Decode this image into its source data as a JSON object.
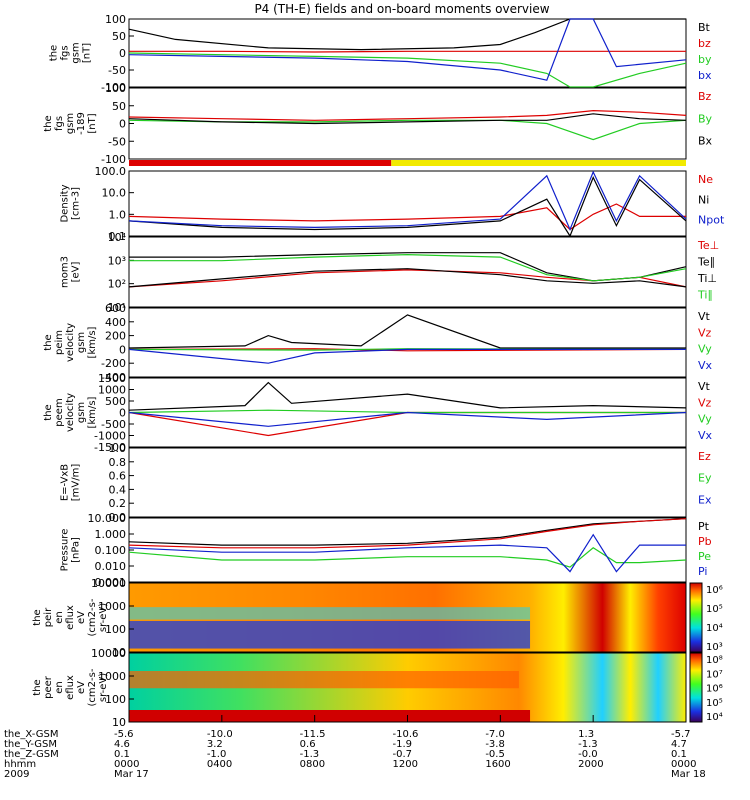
{
  "title": "P4 (TH-E) fields and on-board moments overview",
  "colors": {
    "black": "#000000",
    "red": "#dd0000",
    "green": "#22cc22",
    "blue": "#1020cc",
    "yellow": "#f2ea00"
  },
  "panels": [
    {
      "id": "fgs",
      "ylabel": [
        "the",
        "fgs",
        "gsm",
        "[nT]"
      ],
      "ticks": [
        "100",
        "50",
        "0",
        "-50",
        "-100"
      ],
      "legend": [
        {
          "t": "Bt",
          "c": "black"
        },
        {
          "t": "bz",
          "c": "red"
        },
        {
          "t": "by",
          "c": "green"
        },
        {
          "t": "bx",
          "c": "blue"
        }
      ]
    },
    {
      "id": "fgs_gsm",
      "ylabel": [
        "the",
        "fgs",
        "gsm",
        "-189",
        "[nT]"
      ],
      "ticks": [
        "100",
        "50",
        "0",
        "-50",
        "-100"
      ],
      "legend": [
        {
          "t": "Bz",
          "c": "red"
        },
        {
          "t": "By",
          "c": "green"
        },
        {
          "t": "Bx",
          "c": "black"
        }
      ]
    },
    {
      "id": "density",
      "ylabel": [
        "Density",
        "[cm-3]"
      ],
      "ticks": [
        "100.0",
        "10.0",
        "1.0",
        "0.1"
      ],
      "legend": [
        {
          "t": "Ne",
          "c": "red"
        },
        {
          "t": "Ni",
          "c": "black"
        },
        {
          "t": "Npot",
          "c": "blue"
        }
      ]
    },
    {
      "id": "temp",
      "ylabel": [
        "mom3",
        "[eV]"
      ],
      "ticks": [
        "10⁴",
        "10³",
        "10²",
        "10¹"
      ],
      "legend": [
        {
          "t": "Te⊥",
          "c": "red"
        },
        {
          "t": "Te∥",
          "c": "black"
        },
        {
          "t": "Ti⊥",
          "c": "black"
        },
        {
          "t": "Ti∥",
          "c": "green"
        }
      ]
    },
    {
      "id": "peim_vel",
      "ylabel": [
        "the",
        "peim",
        "velocity",
        "gsm",
        "[km/s]"
      ],
      "ticks": [
        "600",
        "400",
        "200",
        "0",
        "-200",
        "-400"
      ],
      "legend": [
        {
          "t": "Vt",
          "c": "black"
        },
        {
          "t": "Vz",
          "c": "red"
        },
        {
          "t": "Vy",
          "c": "green"
        },
        {
          "t": "Vx",
          "c": "blue"
        }
      ]
    },
    {
      "id": "peem_vel",
      "ylabel": [
        "the",
        "peem",
        "velocity",
        "gsm",
        "[km/s]"
      ],
      "ticks": [
        "1500",
        "1000",
        "500",
        "0",
        "-500",
        "-1000",
        "-1500"
      ],
      "legend": [
        {
          "t": "Vt",
          "c": "black"
        },
        {
          "t": "Vz",
          "c": "red"
        },
        {
          "t": "Vy",
          "c": "green"
        },
        {
          "t": "Vx",
          "c": "blue"
        }
      ]
    },
    {
      "id": "efield",
      "ylabel": [
        "E=-VxB",
        "[mV/m]"
      ],
      "ticks": [
        "1.0",
        "0.8",
        "0.6",
        "0.4",
        "0.2",
        "0.0"
      ],
      "legend": [
        {
          "t": "Ez",
          "c": "red"
        },
        {
          "t": "Ey",
          "c": "green"
        },
        {
          "t": "Ex",
          "c": "blue"
        }
      ]
    },
    {
      "id": "pressure",
      "ylabel": [
        "Pressure",
        "[nPa]"
      ],
      "ticks": [
        "10.000",
        "1.000",
        "0.100",
        "0.010",
        "0.001"
      ],
      "legend": [
        {
          "t": "Pt",
          "c": "black"
        },
        {
          "t": "Pb",
          "c": "red"
        },
        {
          "t": "Pe",
          "c": "green"
        },
        {
          "t": "Pi",
          "c": "blue"
        }
      ]
    },
    {
      "id": "peir_flux",
      "ylabel": [
        "the",
        "peir",
        "en",
        "eflux",
        "eV",
        "(cm2-s-",
        "sr-eV)"
      ],
      "ticks": [
        "10000",
        "1000",
        "100",
        "10"
      ],
      "colorbar": [
        "10⁶",
        "10⁵",
        "10⁴",
        "10³"
      ]
    },
    {
      "id": "peer_flux",
      "ylabel": [
        "the",
        "peer",
        "en",
        "eflux",
        "eV",
        "(cm2-s-",
        "sr-eV)"
      ],
      "ticks": [
        "10000",
        "1000",
        "100",
        "10"
      ],
      "colorbar": [
        "10⁸",
        "10⁷",
        "10⁶",
        "10⁵",
        "10⁴"
      ]
    }
  ],
  "time_axis": {
    "rows": [
      {
        "label": "the_X-GSM",
        "values": [
          "-5.6",
          "-10.0",
          "-11.5",
          "-10.6",
          "-7.0",
          "1.3",
          "-5.7"
        ]
      },
      {
        "label": "the_Y-GSM",
        "values": [
          "4.6",
          "3.2",
          "0.6",
          "-1.9",
          "-3.8",
          "-1.3",
          "4.7"
        ]
      },
      {
        "label": "the_Z-GSM",
        "values": [
          "0.1",
          "-1.0",
          "-1.3",
          "-0.7",
          "-0.5",
          "-0.0",
          "0.1"
        ]
      },
      {
        "label": "hhmm",
        "values": [
          "0000",
          "0400",
          "0800",
          "1200",
          "1600",
          "2000",
          "0000"
        ]
      },
      {
        "label": "2009",
        "values": [
          "Mar 17",
          "",
          "",
          "",
          "",
          "",
          "Mar 18"
        ]
      }
    ],
    "x_values_hours": [
      0,
      4,
      8,
      12,
      16,
      20,
      24
    ]
  },
  "mode_bar": [
    {
      "from_hour": 0,
      "to_hour": 11.3,
      "color": "red"
    },
    {
      "from_hour": 11.3,
      "to_hour": 24,
      "color": "yellow"
    }
  ],
  "chart_data": [
    {
      "type": "line",
      "title": "P4 (TH-E) fields and on-board moments overview",
      "ylabel": "the fgs gsm [nT]",
      "ylim": [
        -100,
        100
      ],
      "x_unit": "hours UT 2009-03-17",
      "series": [
        {
          "name": "Bt",
          "x": [
            0,
            2,
            6,
            10,
            14,
            16,
            17.5,
            19,
            20.5,
            22,
            24
          ],
          "values": [
            70,
            40,
            15,
            10,
            15,
            25,
            60,
            100,
            100,
            100,
            100
          ]
        },
        {
          "name": "bz",
          "x": [
            0,
            4,
            8,
            12,
            16,
            20,
            24
          ],
          "values": [
            5,
            5,
            3,
            5,
            5,
            5,
            5
          ]
        },
        {
          "name": "by",
          "x": [
            0,
            4,
            8,
            12,
            16,
            18,
            19,
            20,
            22,
            24
          ],
          "values": [
            0,
            -5,
            -10,
            -15,
            -30,
            -60,
            -100,
            -100,
            -60,
            -30
          ]
        },
        {
          "name": "bx",
          "x": [
            0,
            4,
            8,
            12,
            16,
            18,
            19,
            20,
            21,
            24
          ],
          "values": [
            -5,
            -10,
            -15,
            -25,
            -50,
            -80,
            100,
            100,
            -40,
            -20
          ]
        }
      ]
    },
    {
      "type": "line",
      "ylabel": "the fgs gsm -189 [nT]",
      "ylim": [
        -120,
        100
      ],
      "series": [
        {
          "name": "Bz",
          "x": [
            0,
            4,
            8,
            12,
            16,
            18,
            20,
            22,
            24
          ],
          "values": [
            10,
            5,
            0,
            5,
            10,
            15,
            30,
            25,
            15
          ]
        },
        {
          "name": "By",
          "x": [
            0,
            4,
            8,
            12,
            16,
            18,
            20,
            22,
            24
          ],
          "values": [
            0,
            -5,
            -5,
            0,
            0,
            -10,
            -60,
            -10,
            0
          ]
        },
        {
          "name": "Bx",
          "x": [
            0,
            4,
            8,
            12,
            16,
            18,
            20,
            22,
            24
          ],
          "values": [
            5,
            -5,
            -10,
            -5,
            0,
            0,
            20,
            5,
            0
          ]
        }
      ]
    },
    {
      "type": "line",
      "ylabel": "Density [cm-3]",
      "ylim": [
        0.1,
        100
      ],
      "yscale": "log",
      "series": [
        {
          "name": "Ne",
          "x": [
            0,
            4,
            8,
            12,
            16,
            18,
            19,
            20,
            21,
            22,
            24
          ],
          "values": [
            0.8,
            0.6,
            0.5,
            0.6,
            0.8,
            2,
            0.2,
            1,
            3,
            0.8,
            0.8
          ]
        },
        {
          "name": "Ni",
          "x": [
            0,
            4,
            8,
            12,
            16,
            18,
            19,
            20,
            21,
            22,
            24
          ],
          "values": [
            0.5,
            0.25,
            0.2,
            0.25,
            0.5,
            5,
            0.1,
            50,
            0.3,
            40,
            0.5
          ]
        },
        {
          "name": "Npot",
          "x": [
            0,
            4,
            8,
            12,
            16,
            18,
            19,
            20,
            21,
            22,
            24
          ],
          "values": [
            0.5,
            0.3,
            0.25,
            0.3,
            0.6,
            60,
            0.2,
            90,
            0.5,
            60,
            0.6
          ]
        }
      ]
    },
    {
      "type": "line",
      "ylabel": "mom3 [eV]",
      "ylim": [
        10,
        30000
      ],
      "yscale": "log",
      "series": [
        {
          "name": "Te⊥",
          "x": [
            0,
            4,
            8,
            12,
            16,
            18,
            20,
            22,
            24
          ],
          "values": [
            100,
            200,
            500,
            700,
            500,
            300,
            200,
            300,
            100
          ]
        },
        {
          "name": "Te∥",
          "x": [
            0,
            4,
            8,
            12,
            16,
            18,
            20,
            22,
            24
          ],
          "values": [
            100,
            250,
            600,
            800,
            400,
            200,
            150,
            200,
            100
          ]
        },
        {
          "name": "Ti⊥",
          "x": [
            0,
            4,
            8,
            12,
            16,
            18,
            20,
            22,
            24
          ],
          "values": [
            3000,
            3000,
            4000,
            5000,
            5000,
            500,
            200,
            300,
            1000
          ]
        },
        {
          "name": "Ti∥",
          "x": [
            0,
            4,
            8,
            12,
            16,
            18,
            20,
            22,
            24
          ],
          "values": [
            2000,
            2000,
            3000,
            4000,
            3000,
            400,
            200,
            300,
            800
          ]
        }
      ]
    },
    {
      "type": "line",
      "ylabel": "the peim velocity gsm [km/s]",
      "ylim": [
        -400,
        600
      ],
      "series": [
        {
          "name": "Vt",
          "x": [
            0,
            5,
            6,
            7,
            10,
            12,
            16,
            24
          ],
          "values": [
            20,
            50,
            200,
            100,
            50,
            500,
            20,
            20
          ]
        },
        {
          "name": "Vz",
          "x": [
            0,
            8,
            12,
            24
          ],
          "values": [
            0,
            10,
            -20,
            0
          ]
        },
        {
          "name": "Vy",
          "x": [
            0,
            8,
            12,
            24
          ],
          "values": [
            0,
            -10,
            10,
            0
          ]
        },
        {
          "name": "Vx",
          "x": [
            0,
            6,
            8,
            12,
            24
          ],
          "values": [
            0,
            -200,
            -50,
            0,
            0
          ]
        }
      ]
    },
    {
      "type": "line",
      "ylabel": "the peem velocity gsm [km/s]",
      "ylim": [
        -1500,
        1500
      ],
      "series": [
        {
          "name": "Vt",
          "x": [
            0,
            5,
            6,
            7,
            12,
            16,
            20,
            24
          ],
          "values": [
            100,
            300,
            1300,
            400,
            800,
            200,
            300,
            200
          ]
        },
        {
          "name": "Vz",
          "x": [
            0,
            6,
            12,
            24
          ],
          "values": [
            0,
            -1000,
            0,
            0
          ]
        },
        {
          "name": "Vy",
          "x": [
            0,
            6,
            12,
            24
          ],
          "values": [
            0,
            100,
            0,
            0
          ]
        },
        {
          "name": "Vx",
          "x": [
            0,
            6,
            12,
            18,
            24
          ],
          "values": [
            0,
            -600,
            0,
            -300,
            0
          ]
        }
      ]
    },
    {
      "type": "line",
      "ylabel": "E=-VxB [mV/m]",
      "ylim": [
        0,
        1
      ],
      "series": [
        {
          "name": "Ez",
          "x": [],
          "values": []
        },
        {
          "name": "Ey",
          "x": [],
          "values": []
        },
        {
          "name": "Ex",
          "x": [],
          "values": []
        }
      ]
    },
    {
      "type": "line",
      "ylabel": "Pressure [nPa]",
      "ylim": [
        0.001,
        20
      ],
      "yscale": "log",
      "series": [
        {
          "name": "Pt",
          "x": [
            0,
            4,
            8,
            12,
            16,
            18,
            20,
            22,
            24
          ],
          "values": [
            0.5,
            0.3,
            0.3,
            0.4,
            1,
            3,
            8,
            12,
            18
          ]
        },
        {
          "name": "Pb",
          "x": [
            0,
            4,
            8,
            12,
            16,
            18,
            20,
            22,
            24
          ],
          "values": [
            0.3,
            0.2,
            0.2,
            0.3,
            0.8,
            2.5,
            7,
            12,
            18
          ]
        },
        {
          "name": "Pe",
          "x": [
            0,
            4,
            8,
            12,
            16,
            18,
            19,
            20,
            21,
            22,
            24
          ],
          "values": [
            0.1,
            0.03,
            0.03,
            0.05,
            0.05,
            0.03,
            0.01,
            0.2,
            0.02,
            0.02,
            0.03
          ]
        },
        {
          "name": "Pi",
          "x": [
            0,
            4,
            8,
            12,
            16,
            18,
            19,
            20,
            21,
            22,
            24
          ],
          "values": [
            0.2,
            0.1,
            0.1,
            0.2,
            0.3,
            0.2,
            0.005,
            1.5,
            0.005,
            0.3,
            0.3
          ]
        }
      ]
    },
    {
      "type": "heatmap",
      "ylabel": "the peir en eflux",
      "yscale": "log",
      "ylim": [
        10,
        10000
      ],
      "colorbar": {
        "min": "10³",
        "max": "10⁶"
      }
    },
    {
      "type": "heatmap",
      "ylabel": "the peer en eflux",
      "yscale": "log",
      "ylim": [
        10,
        10000
      ],
      "colorbar": {
        "min": "10⁴",
        "max": "10⁸"
      }
    }
  ]
}
